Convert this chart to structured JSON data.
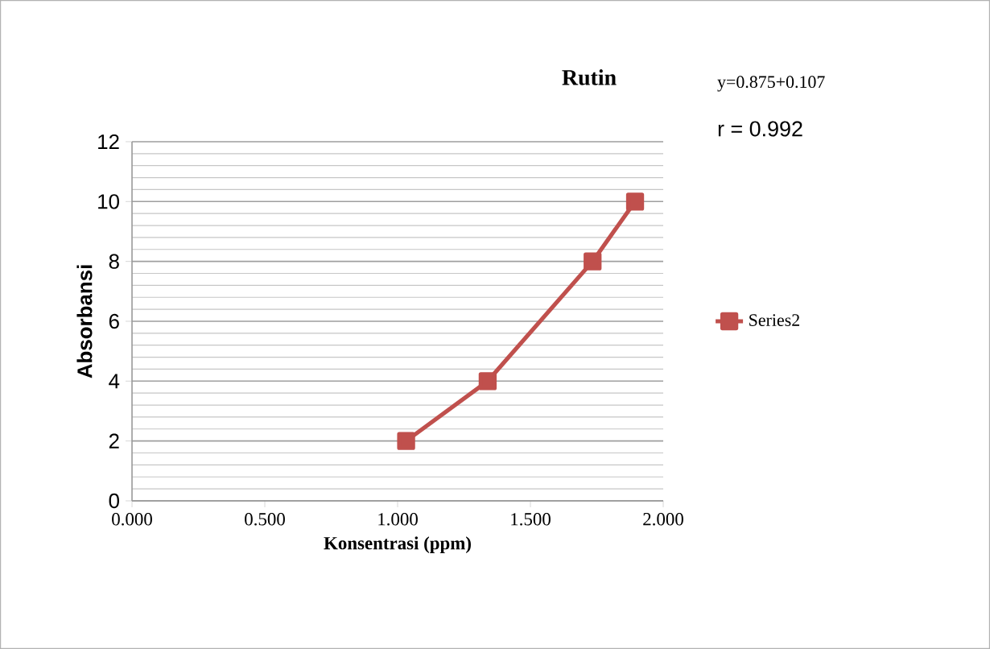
{
  "chart_data": {
    "type": "line",
    "title": "Rutin",
    "xlabel": "Konsentrasi (ppm)",
    "ylabel": "Absorbansi",
    "annotations": [
      "y=0.875+0.107",
      "r = 0.992"
    ],
    "x": [
      1.032,
      1.339,
      1.734,
      1.894
    ],
    "series": [
      {
        "name": "Series2",
        "color": "#c0504d",
        "values": [
          2,
          4,
          8,
          10
        ]
      }
    ],
    "xlim": [
      0,
      2
    ],
    "xticks": [
      {
        "value": 0,
        "label": "0.000"
      },
      {
        "value": 0.5,
        "label": "0.500"
      },
      {
        "value": 1,
        "label": "1.000"
      },
      {
        "value": 1.5,
        "label": "1.500"
      },
      {
        "value": 2,
        "label": "2.000"
      }
    ],
    "ylim": [
      0,
      12
    ],
    "yticks": [
      0,
      2,
      4,
      6,
      8,
      10,
      12
    ],
    "grid": "y",
    "legend": "right",
    "marker": "square",
    "line_style": "solid"
  }
}
